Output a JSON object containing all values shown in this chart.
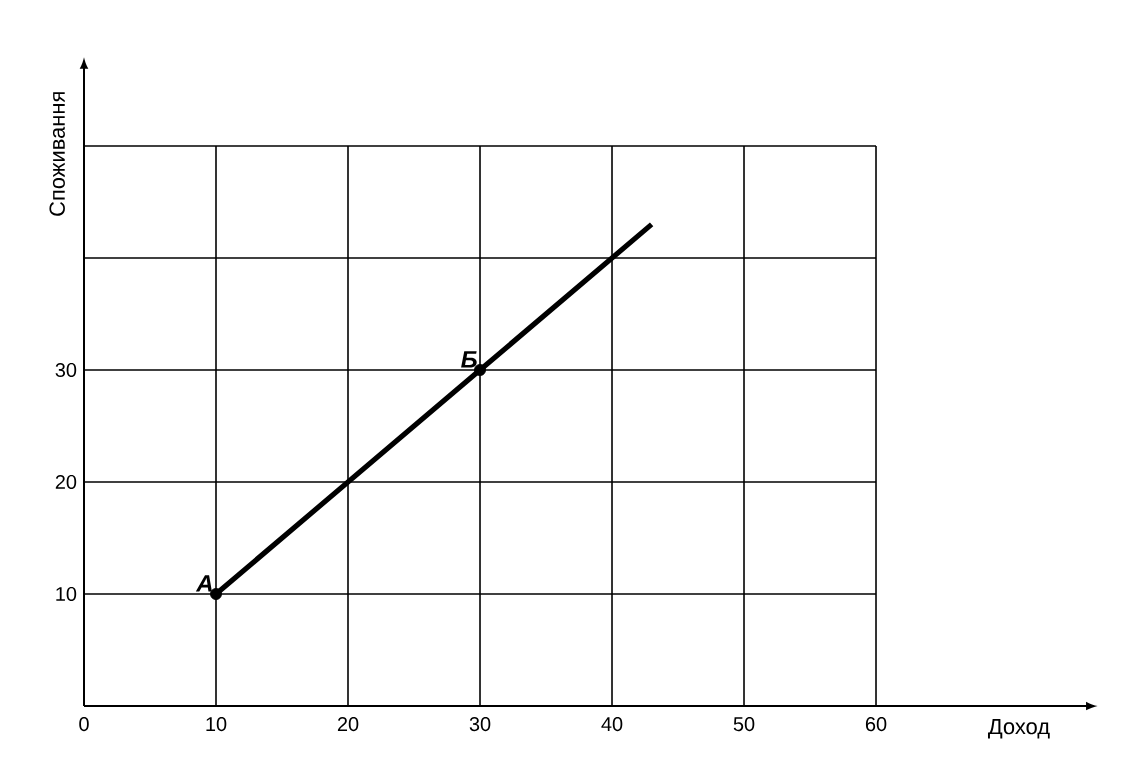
{
  "chart_data": {
    "type": "line",
    "xlabel": "Доход",
    "ylabel": "Споживання",
    "series": [
      {
        "color": "#000000",
        "x": [
          10,
          30,
          43
        ],
        "values": [
          10,
          30,
          43
        ],
        "marker": "none"
      },
      {
        "type": "scatter",
        "color": "#000000",
        "x": [
          10,
          30
        ],
        "values": [
          10,
          30
        ],
        "marker": "circle"
      }
    ],
    "annotations": [
      {
        "text": "А",
        "x": 10,
        "y": 10
      },
      {
        "text": "Б",
        "x": 30,
        "y": 30
      }
    ],
    "xlim": [
      0,
      76
    ],
    "ylim": [
      0,
      57
    ],
    "xticks": [
      0,
      10,
      20,
      30,
      40,
      50,
      60
    ],
    "yticks": [
      10,
      20,
      30,
      {
        "value": 40,
        "label": null
      },
      {
        "value": 50,
        "label": null
      }
    ],
    "grid": true
  }
}
